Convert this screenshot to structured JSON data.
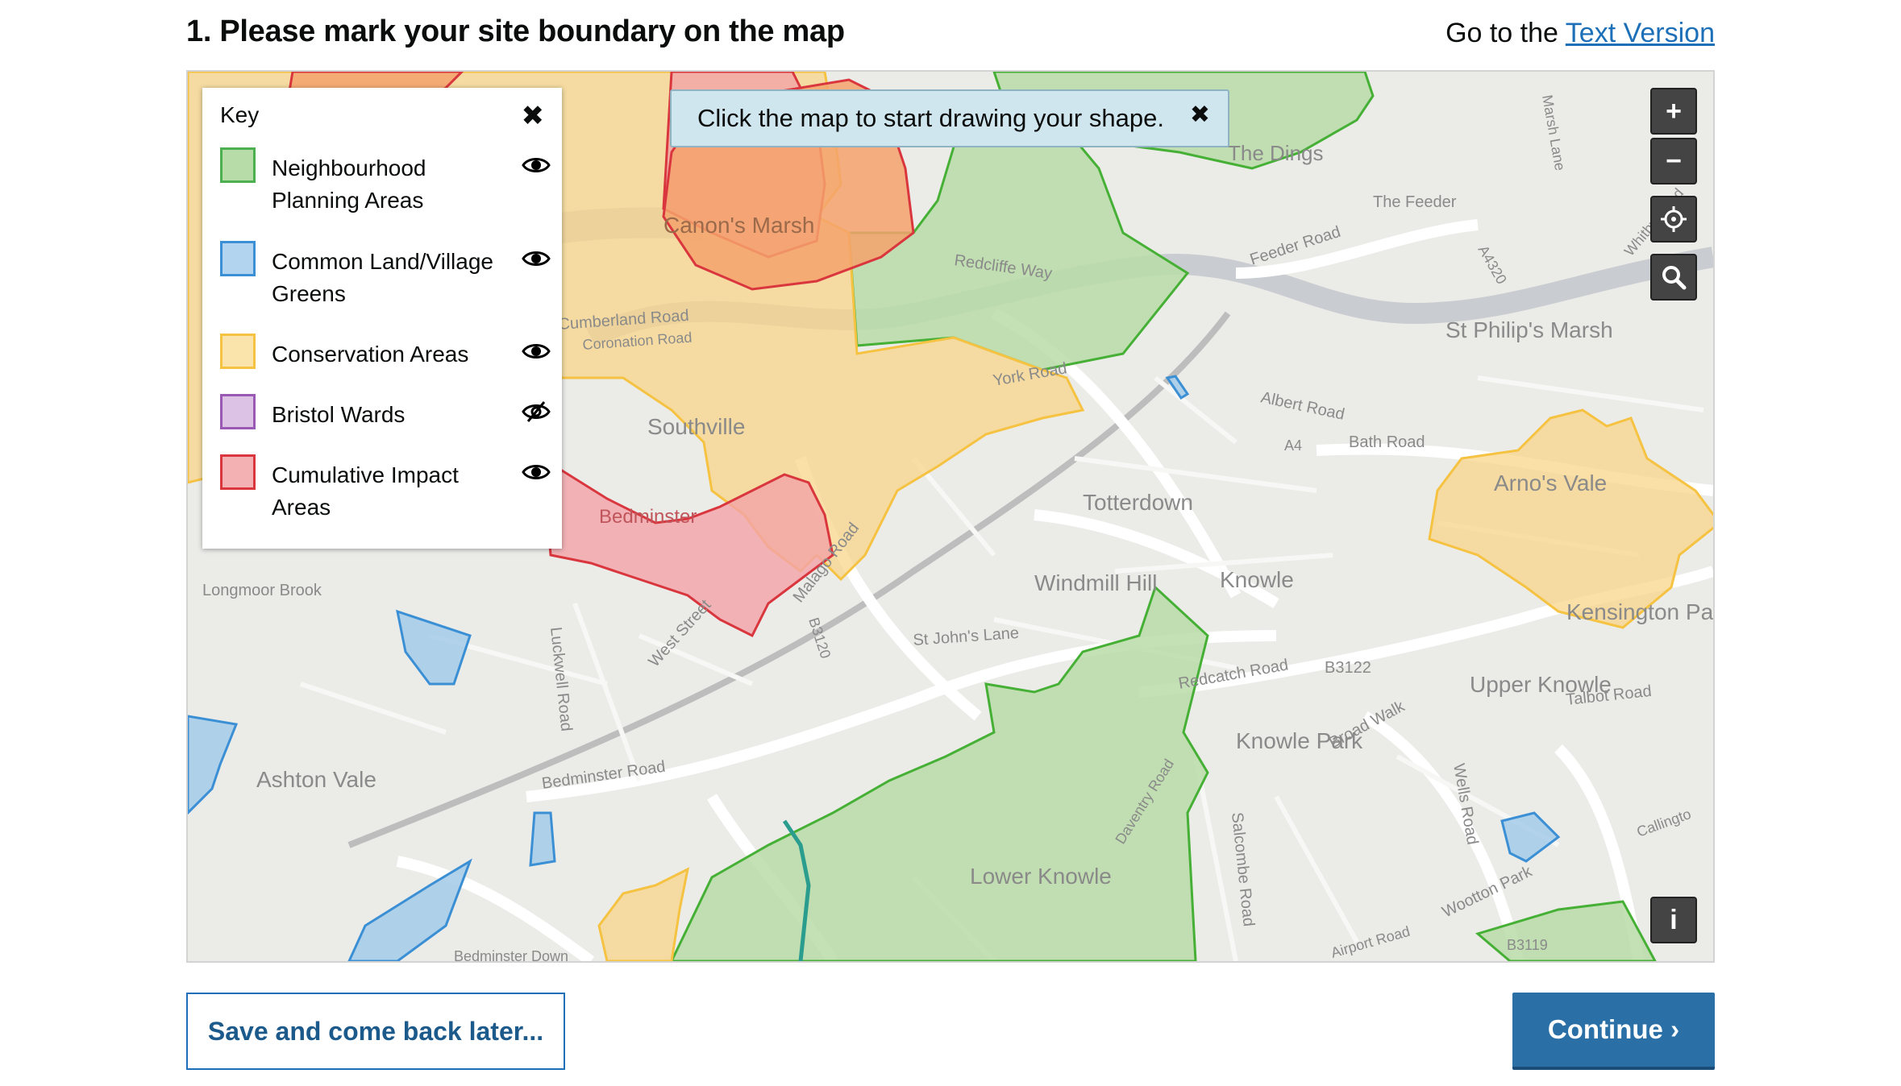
{
  "heading": "1. Please mark your site boundary on the map",
  "text_version": {
    "prefix": "Go to the",
    "link": "Text Version"
  },
  "toast": {
    "message": "Click the map to start drawing your shape.",
    "close": "✖"
  },
  "key": {
    "title": "Key",
    "close": "✖",
    "items": [
      {
        "label": "Neighbourhood Planning Areas",
        "fill": "#b8dca7",
        "stroke": "#4caf50",
        "visible": true
      },
      {
        "label": "Common Land/Village Greens",
        "fill": "#b3d4ee",
        "stroke": "#3b8fd4",
        "visible": true
      },
      {
        "label": "Conservation Areas",
        "fill": "#fbe3ac",
        "stroke": "#f5c242",
        "visible": true
      },
      {
        "label": "Bristol Wards",
        "fill": "#dcc3e5",
        "stroke": "#9b59b6",
        "visible": false
      },
      {
        "label": "Cumulative Impact Areas",
        "fill": "#f3b1b4",
        "stroke": "#d9363e",
        "visible": true
      }
    ]
  },
  "controls": {
    "zoom_in": "+",
    "zoom_out": "−",
    "info": "i"
  },
  "map_labels": {
    "canons_marsh": "Canon's Marsh",
    "southville": "Southville",
    "totterdown": "Totterdown",
    "windmill_hill": "Windmill Hill",
    "knowle": "Knowle",
    "kensington_park": "Kensington Park",
    "upper_knowle": "Upper Knowle",
    "knowle_park": "Knowle Park",
    "ashton_vale": "Ashton Vale",
    "lower_knowle": "Lower Knowle",
    "st_philips_marsh": "St Philip's Marsh",
    "arnos_vale": "Arno's Vale",
    "the_dings": "The Dings",
    "longmoor_brook": "Longmoor Brook",
    "bedminster": "Bedminster",
    "the_feeder": "The Feeder",
    "feeder_road": "Feeder Road",
    "albert_road": "Albert Road",
    "bath_road": "Bath Road",
    "a4": "A4",
    "st_johns_lane": "St John's Lane",
    "redcatch_road": "Redcatch Road",
    "b3122": "B3122",
    "talbot_road": "Talbot Road",
    "broad_walk": "Broad Walk",
    "bedminster_road": "Bedminster Road",
    "west_street": "West Street",
    "malago_road": "Malago Road",
    "b3120": "B3120",
    "luckwell_road": "Luckwell Road",
    "wells_road": "Wells Road",
    "salcombe_road": "Salcombe Road",
    "york_road": "York Road",
    "redcliffe_way": "Redcliffe Way",
    "cumberland_road": "Cumberland Road",
    "coronation_road": "Coronation Road",
    "marsh_lane": "Marsh Lane",
    "a4320": "A4320",
    "whitby_road": "Whitby Road",
    "b3119": "B3119",
    "callington": "Callingto",
    "wootton_park": "Wootton Park",
    "daventry_road": "Daventry Road",
    "airport_road": "Airport Road",
    "bedminster_down": "Bedminster Down"
  },
  "buttons": {
    "save": "Save and come back later...",
    "continue": "Continue ›"
  }
}
